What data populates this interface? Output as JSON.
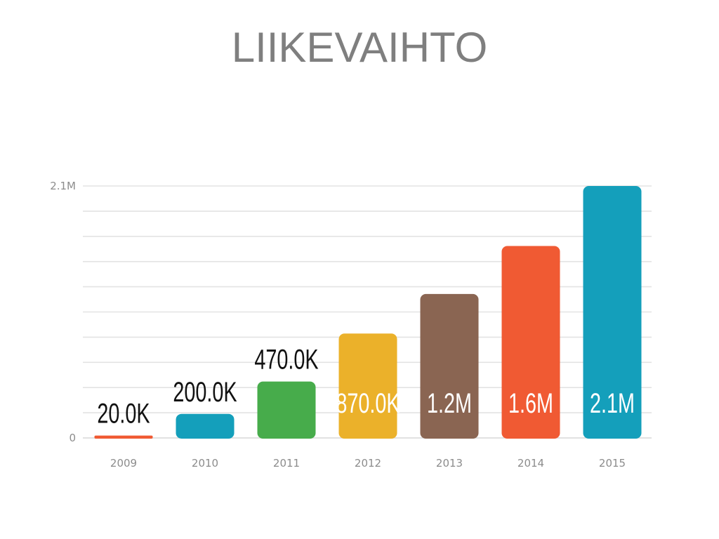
{
  "chart_data": {
    "type": "bar",
    "title": "LIIKEVAIHTO",
    "categories": [
      "2009",
      "2010",
      "2011",
      "2012",
      "2013",
      "2014",
      "2015"
    ],
    "values": [
      20000,
      200000,
      470000,
      870000,
      1200000,
      1600000,
      2100000
    ],
    "data_labels": [
      "20.0K",
      "200.0K",
      "470.0K",
      "870.0K",
      "1.2M",
      "1.6M",
      "2.1M"
    ],
    "bar_colors": [
      "#f05a33",
      "#149fbb",
      "#47ac4b",
      "#ebb12a",
      "#8a6552",
      "#f05a33",
      "#149fbb"
    ],
    "ylim": [
      0,
      2100000
    ],
    "yticks": [
      {
        "value": 0,
        "label": "0"
      },
      {
        "value": 2100000,
        "label": "2.1M"
      }
    ],
    "grid": true,
    "xlabel": "",
    "ylabel": ""
  }
}
